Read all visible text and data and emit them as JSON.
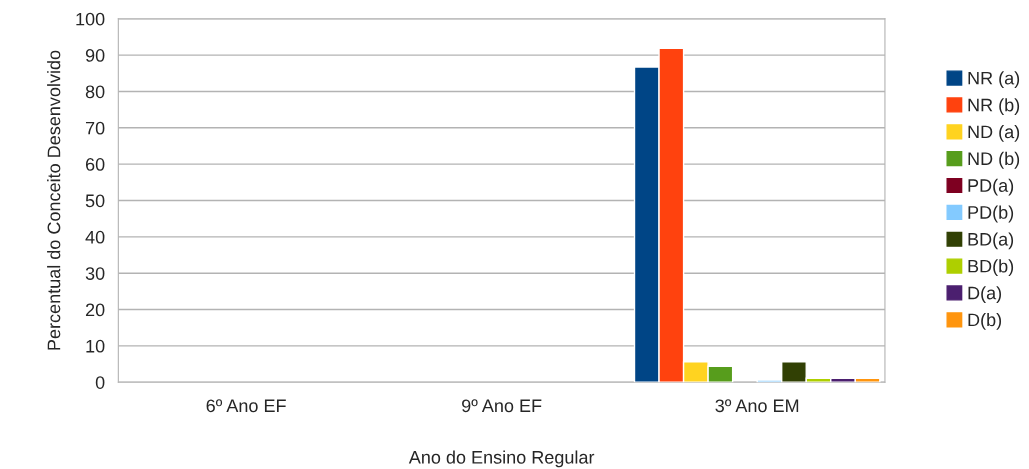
{
  "chart_data": {
    "type": "bar",
    "xlabel": "Ano do Ensino Regular",
    "ylabel": "Percentual do Conceito Desenvolvido",
    "categories": [
      "6º Ano EF",
      "9º Ano EF",
      "3º Ano EM"
    ],
    "series": [
      {
        "name": "NR (a)",
        "color": "#004586",
        "values": [
          null,
          null,
          86.7
        ]
      },
      {
        "name": "NR (b)",
        "color": "#ff420e",
        "values": [
          null,
          null,
          91.9
        ]
      },
      {
        "name": "ND (a)",
        "color": "#ffd320",
        "values": [
          null,
          null,
          5.6
        ]
      },
      {
        "name": "ND (b)",
        "color": "#579d1c",
        "values": [
          null,
          null,
          4.4
        ]
      },
      {
        "name": "PD(a)",
        "color": "#7e0021",
        "values": [
          null,
          null,
          null
        ]
      },
      {
        "name": "PD(b)",
        "color": "#83caff",
        "values": [
          null,
          null,
          0.6
        ]
      },
      {
        "name": "BD(a)",
        "color": "#314004",
        "values": [
          null,
          null,
          5.6
        ]
      },
      {
        "name": "BD(b)",
        "color": "#aecf00",
        "values": [
          null,
          null,
          1.1
        ]
      },
      {
        "name": "D(a)",
        "color": "#4b1f6f",
        "values": [
          null,
          null,
          1.1
        ]
      },
      {
        "name": "D(b)",
        "color": "#ff950e",
        "values": [
          null,
          null,
          1.1
        ]
      }
    ],
    "ylim": [
      0,
      100
    ],
    "yticks": [
      0,
      10,
      20,
      30,
      40,
      50,
      60,
      70,
      80,
      90,
      100
    ],
    "grid": "y",
    "legend": "right"
  }
}
